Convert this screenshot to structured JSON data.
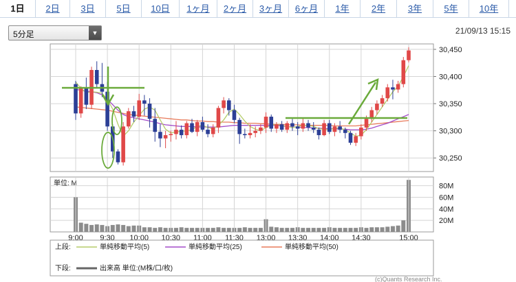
{
  "tabs": [
    "1日",
    "2日",
    "3日",
    "5日",
    "10日",
    "1ヶ月",
    "2ヶ月",
    "3ヶ月",
    "6ヶ月",
    "1年",
    "2年",
    "3年",
    "5年",
    "10年"
  ],
  "active_tab": 0,
  "interval_select": {
    "value": "5分足"
  },
  "timestamp": "21/09/13 15:15",
  "legend": {
    "upper_label": "上段:",
    "lower_label": "下段:",
    "items": [
      {
        "label": "単純移動平均(5)",
        "color": "#b5cc6a"
      },
      {
        "label": "単純移動平均(25)",
        "color": "#a34cc9"
      },
      {
        "label": "単純移動平均(50)",
        "color": "#e87a5a"
      }
    ],
    "volume_label": "出来高 単位:(M株/口/枚)"
  },
  "copyright": "(c)Quants Research Inc.",
  "colors": {
    "up": "#e04848",
    "down": "#2c3f96",
    "volume": "#8c8c8c",
    "annotation": "#6aaa3a",
    "tab_link": "#2a5aa8"
  },
  "chart_data": [
    {
      "type": "candlestick",
      "y_ticks": [
        "30,450",
        "30,400",
        "30,350",
        "30,300",
        "30,250"
      ],
      "ylim": [
        30225,
        30460
      ],
      "x_tick_labels": [
        "9:00",
        "9:30",
        "10:00",
        "10:30",
        "11:00",
        "11:30",
        "13:00",
        "13:30",
        "14:00",
        "14:30",
        "15:00"
      ],
      "ohlc": [
        [
          30386,
          30392,
          30320,
          30332
        ],
        [
          30332,
          30382,
          30324,
          30378
        ],
        [
          30378,
          30398,
          30340,
          30348
        ],
        [
          30348,
          30418,
          30340,
          30412
        ],
        [
          30412,
          30428,
          30380,
          30386
        ],
        [
          30386,
          30425,
          30362,
          30372
        ],
        [
          30372,
          30390,
          30300,
          30308
        ],
        [
          30308,
          30312,
          30250,
          30262
        ],
        [
          30262,
          30266,
          30238,
          30242
        ],
        [
          30242,
          30316,
          30236,
          30308
        ],
        [
          30308,
          30342,
          30304,
          30336
        ],
        [
          30336,
          30346,
          30316,
          30326
        ],
        [
          30326,
          30368,
          30320,
          30356
        ],
        [
          30356,
          30366,
          30328,
          30350
        ],
        [
          30350,
          30360,
          30306,
          30322
        ],
        [
          30322,
          30342,
          30280,
          30298
        ],
        [
          30298,
          30312,
          30270,
          30286
        ],
        [
          30286,
          30300,
          30268,
          30292
        ],
        [
          30292,
          30300,
          30280,
          30294
        ],
        [
          30294,
          30318,
          30284,
          30302
        ],
        [
          30302,
          30310,
          30286,
          30292
        ],
        [
          30292,
          30318,
          30286,
          30314
        ],
        [
          30314,
          30322,
          30296,
          30298
        ],
        [
          30298,
          30320,
          30290,
          30316
        ],
        [
          30316,
          30326,
          30298,
          30302
        ],
        [
          30302,
          30312,
          30288,
          30294
        ],
        [
          30294,
          30312,
          30288,
          30306
        ],
        [
          30306,
          30346,
          30296,
          30342
        ],
        [
          30342,
          30362,
          30332,
          30356
        ],
        [
          30356,
          30360,
          30328,
          30338
        ],
        [
          30338,
          30348,
          30314,
          30320
        ],
        [
          30320,
          30324,
          30276,
          30294
        ],
        [
          30294,
          30304,
          30286,
          30292
        ],
        [
          30292,
          30312,
          30286,
          30296
        ],
        [
          30296,
          30308,
          30288,
          30300
        ],
        [
          30300,
          30312,
          30294,
          30306
        ],
        [
          30306,
          30334,
          30296,
          30326
        ],
        [
          30326,
          30330,
          30298,
          30304
        ],
        [
          30304,
          30316,
          30296,
          30312
        ],
        [
          30312,
          30318,
          30298,
          30302
        ],
        [
          30302,
          30318,
          30296,
          30314
        ],
        [
          30314,
          30322,
          30300,
          30308
        ],
        [
          30308,
          30316,
          30292,
          30304
        ],
        [
          30304,
          30324,
          30298,
          30314
        ],
        [
          30314,
          30320,
          30300,
          30306
        ],
        [
          30306,
          30316,
          30296,
          30302
        ],
        [
          30302,
          30306,
          30284,
          30292
        ],
        [
          30292,
          30320,
          30290,
          30314
        ],
        [
          30314,
          30320,
          30294,
          30298
        ],
        [
          30298,
          30314,
          30290,
          30308
        ],
        [
          30308,
          30318,
          30296,
          30302
        ],
        [
          30302,
          30306,
          30286,
          30296
        ],
        [
          30296,
          30300,
          30274,
          30278
        ],
        [
          30278,
          30296,
          30272,
          30290
        ],
        [
          30290,
          30312,
          30284,
          30306
        ],
        [
          30306,
          30328,
          30300,
          30322
        ],
        [
          30322,
          30344,
          30316,
          30338
        ],
        [
          30338,
          30356,
          30330,
          30350
        ],
        [
          30350,
          30366,
          30344,
          30360
        ],
        [
          30360,
          30386,
          30354,
          30380
        ],
        [
          30380,
          30394,
          30358,
          30376
        ],
        [
          30376,
          30392,
          30370,
          30386
        ],
        [
          30386,
          30436,
          30380,
          30430
        ],
        [
          30430,
          30454,
          30426,
          30448
        ]
      ],
      "ma5": [
        30390,
        30378,
        30370,
        30372,
        30371,
        30369,
        30358,
        30340,
        30312,
        30290,
        30300,
        30316,
        30328,
        30340,
        30344,
        30338,
        30320,
        30303,
        30296,
        30298,
        30299,
        30300,
        30302,
        30308,
        30310,
        30306,
        30304,
        30310,
        30320,
        30334,
        30340,
        30330,
        30318,
        30308,
        30303,
        30300,
        30306,
        30310,
        30312,
        30310,
        30308,
        30306,
        30308,
        30310,
        30310,
        30308,
        30304,
        30303,
        30302,
        30305,
        30305,
        30302,
        30296,
        30290,
        30292,
        30302,
        30316,
        30330,
        30344,
        30358,
        30372,
        30382,
        30400,
        30420
      ],
      "ma25": [
        30376,
        30375,
        30373,
        30372,
        30370,
        30366,
        30358,
        30348,
        30338,
        30330,
        30326,
        30324,
        30322,
        30320,
        30318,
        30316,
        30313,
        30311,
        30310,
        30309,
        30308,
        30308,
        30308,
        30307,
        30307,
        30307,
        30307,
        30307,
        30308,
        30309,
        30310,
        30310,
        30310,
        30310,
        30310,
        30310,
        30310,
        30310,
        30310,
        30309,
        30308,
        30307,
        30307,
        30306,
        30306,
        30305,
        30305,
        30304,
        30304,
        30304,
        30303,
        30303,
        30302,
        30302,
        30302,
        30303,
        30305,
        30308,
        30311,
        30314,
        30318,
        30322,
        30326,
        30330
      ],
      "ma50": [
        30344,
        30343,
        30342,
        30341,
        30340,
        30339,
        30338,
        30336,
        30334,
        30332,
        30330,
        30329,
        30328,
        30327,
        30326,
        30325,
        30324,
        30323,
        30322,
        30321,
        30320,
        30320,
        30319,
        30318,
        30318,
        30317,
        30317,
        30316,
        30316,
        30316,
        30315,
        30315,
        30314,
        30314,
        30314,
        30313,
        30313,
        30312,
        30312,
        30312,
        30311,
        30311,
        30311,
        30310,
        30310,
        30310,
        30310,
        30310,
        30310,
        30309,
        30309,
        30309,
        30309,
        30309,
        30310,
        30311,
        30312,
        30313,
        30314,
        30315,
        30316,
        30317,
        30318,
        30319
      ]
    },
    {
      "type": "bar",
      "title": "単位: M",
      "y_ticks": [
        "80M",
        "60M",
        "40M",
        "20M"
      ],
      "ylim": [
        0,
        95
      ],
      "values": [
        60,
        16,
        14,
        12,
        13,
        12,
        10,
        12,
        13,
        12,
        10,
        11,
        11,
        8,
        8,
        7,
        8,
        7,
        7,
        7,
        8,
        7,
        7,
        7,
        7,
        7,
        7,
        8,
        7,
        7,
        7,
        7,
        8,
        7,
        7,
        7,
        22,
        9,
        8,
        7,
        7,
        7,
        8,
        7,
        7,
        7,
        7,
        7,
        8,
        7,
        7,
        7,
        7,
        7,
        8,
        7,
        8,
        8,
        8,
        9,
        10,
        11,
        20,
        90
      ]
    }
  ]
}
